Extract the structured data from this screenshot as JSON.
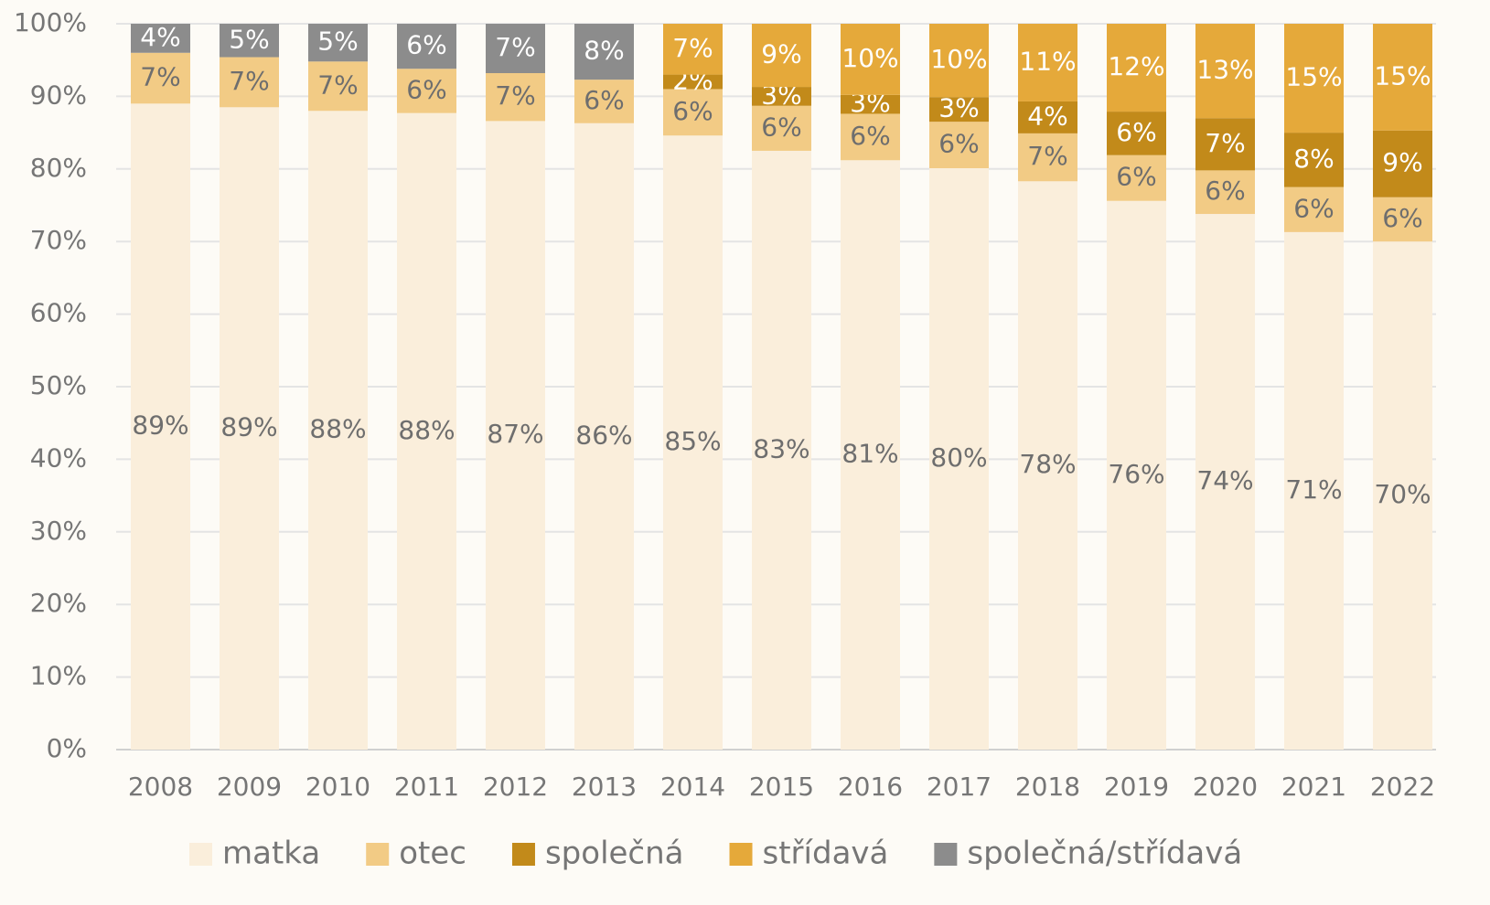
{
  "chart_data": {
    "type": "stacked_bar",
    "categories": [
      "2008",
      "2009",
      "2010",
      "2011",
      "2012",
      "2013",
      "2014",
      "2015",
      "2016",
      "2017",
      "2018",
      "2019",
      "2020",
      "2021",
      "2022"
    ],
    "series": [
      {
        "name": "matka",
        "color": "#faeedb",
        "values": [
          89.0,
          88.5,
          88.0,
          87.7,
          86.6,
          86.3,
          84.6,
          82.5,
          81.2,
          80.1,
          78.3,
          75.6,
          73.8,
          71.3,
          70.0
        ],
        "value_labels": [
          "89%",
          "89%",
          "88%",
          "88%",
          "87%",
          "86%",
          "85%",
          "83%",
          "81%",
          "80%",
          "78%",
          "76%",
          "74%",
          "71%",
          "70%"
        ]
      },
      {
        "name": "otec",
        "color": "#f2cb85",
        "values": [
          7.0,
          6.9,
          6.8,
          6.1,
          6.6,
          6.0,
          6.4,
          6.2,
          6.4,
          6.4,
          6.6,
          6.3,
          6.0,
          6.2,
          6.1
        ],
        "value_labels": [
          "7%",
          "7%",
          "7%",
          "6%",
          "7%",
          "6%",
          "6%",
          "6%",
          "6%",
          "6%",
          "7%",
          "6%",
          "6%",
          "6%",
          "6%"
        ]
      },
      {
        "name": "společná",
        "color": "#c28a1a",
        "values": [
          null,
          null,
          null,
          null,
          null,
          null,
          2.0,
          2.6,
          2.6,
          3.4,
          4.4,
          6.0,
          7.2,
          7.5,
          9.2
        ],
        "value_labels": [
          null,
          null,
          null,
          null,
          null,
          null,
          "2%",
          "3%",
          "3%",
          "3%",
          "4%",
          "6%",
          "7%",
          "8%",
          "9%"
        ]
      },
      {
        "name": "střídavá",
        "color": "#e5a93a",
        "values": [
          null,
          null,
          null,
          null,
          null,
          null,
          7.0,
          8.7,
          9.8,
          10.1,
          10.7,
          12.1,
          13.0,
          15.0,
          14.7
        ],
        "value_labels": [
          null,
          null,
          null,
          null,
          null,
          null,
          "7%",
          "9%",
          "10%",
          "10%",
          "11%",
          "12%",
          "13%",
          "15%",
          "15%"
        ]
      },
      {
        "name": "společná/střídavá",
        "color": "#8c8c8c",
        "values": [
          4.0,
          4.6,
          5.2,
          6.2,
          6.8,
          7.7,
          null,
          null,
          null,
          null,
          null,
          null,
          null,
          null,
          null
        ],
        "value_labels": [
          "4%",
          "5%",
          "5%",
          "6%",
          "7%",
          "8%",
          null,
          null,
          null,
          null,
          null,
          null,
          null,
          null,
          null
        ]
      }
    ],
    "ylim": [
      0,
      100
    ],
    "yticks": [
      {
        "value": 0,
        "label": "0%"
      },
      {
        "value": 10,
        "label": "10%"
      },
      {
        "value": 20,
        "label": "20%"
      },
      {
        "value": 30,
        "label": "30%"
      },
      {
        "value": 40,
        "label": "40%"
      },
      {
        "value": 50,
        "label": "50%"
      },
      {
        "value": 60,
        "label": "60%"
      },
      {
        "value": 70,
        "label": "70%"
      },
      {
        "value": 80,
        "label": "80%"
      },
      {
        "value": 90,
        "label": "90%"
      },
      {
        "value": 100,
        "label": "100%"
      }
    ],
    "grid": true,
    "legend": "bottom"
  }
}
